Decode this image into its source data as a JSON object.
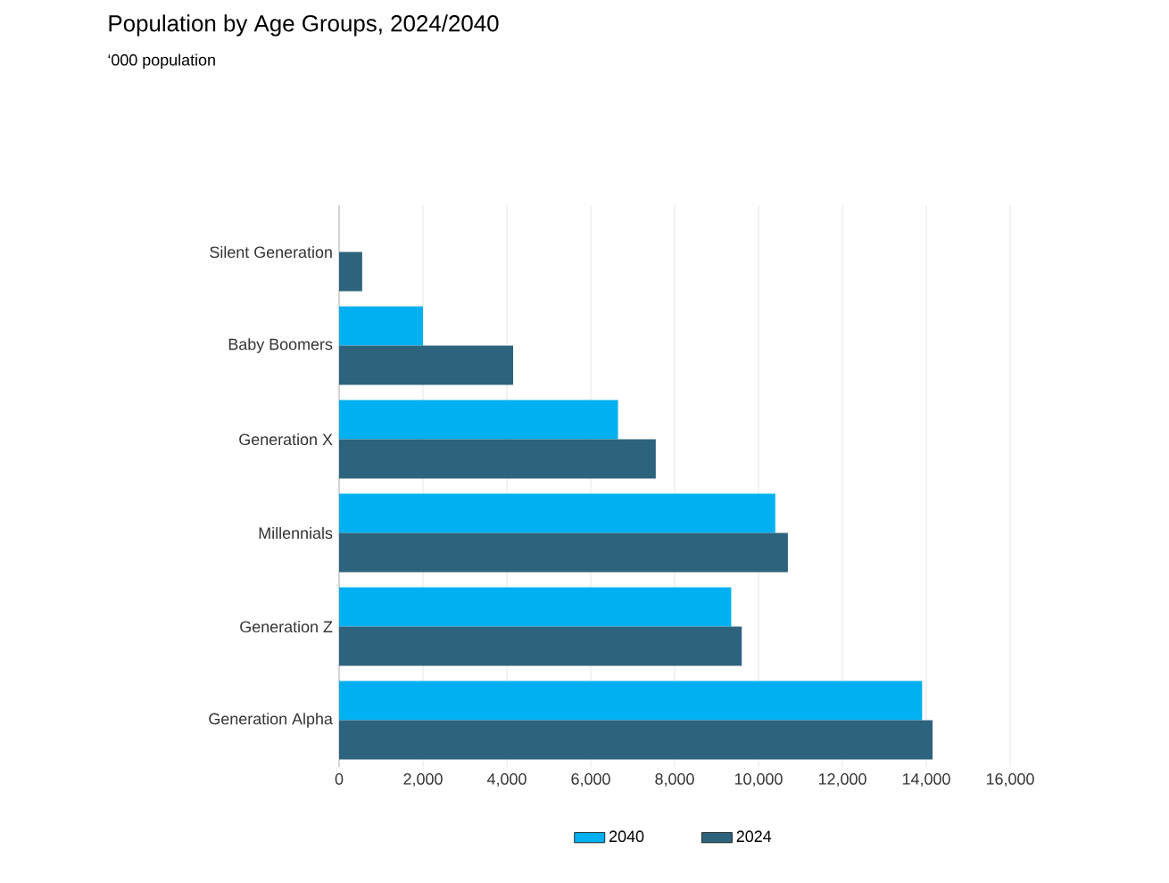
{
  "chart_data": {
    "type": "bar",
    "orientation": "horizontal",
    "title": "Population by Age Groups, 2024/2040",
    "subtitle": "‘000 population",
    "categories": [
      "Silent Generation",
      "Baby Boomers",
      "Generation X",
      "Millennials",
      "Generation Z",
      "Generation Alpha"
    ],
    "series": [
      {
        "name": "2040",
        "color": "#00b0f0",
        "values": [
          null,
          2000,
          6650,
          10400,
          9350,
          13900
        ]
      },
      {
        "name": "2024",
        "color": "#2e637d",
        "values": [
          550,
          4150,
          7550,
          10700,
          9600,
          14150
        ]
      }
    ],
    "xlim": [
      0,
      16000
    ],
    "xticks": [
      0,
      {
        "value": 2000,
        "label": "2,000"
      },
      {
        "value": 4000,
        "label": "4,000"
      },
      {
        "value": 6000,
        "label": "6,000"
      },
      {
        "value": 8000,
        "label": "8,000"
      },
      {
        "value": 10000,
        "label": "10,000"
      },
      {
        "value": 12000,
        "label": "12,000"
      },
      {
        "value": 14000,
        "label": "14,000"
      },
      {
        "value": 16000,
        "label": "16,000"
      }
    ],
    "grid": "x",
    "legend": "bottom"
  }
}
